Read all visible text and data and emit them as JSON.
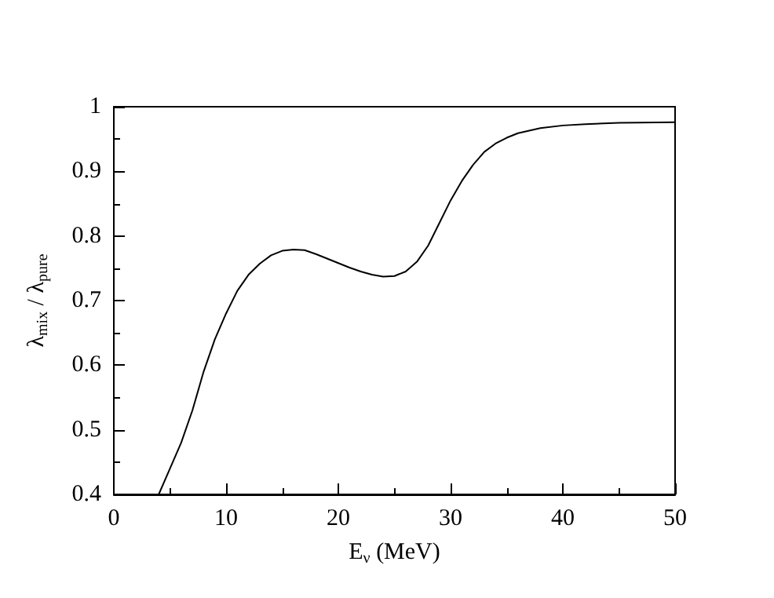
{
  "chart_data": {
    "type": "line",
    "xlabel": "E$_{ν}$ (MeV)",
    "ylabel": "λ$_{mix}$ / λ$_{pure}$",
    "series": [
      {
        "color": "#000000",
        "x": [
          4,
          5,
          6,
          7,
          8,
          9,
          10,
          11,
          12,
          13,
          14,
          15,
          16,
          17,
          18,
          19,
          20,
          21,
          22,
          23,
          24,
          25,
          26,
          27,
          28,
          29,
          30,
          31,
          32,
          33,
          34,
          35,
          36,
          38,
          40,
          42,
          45,
          50
        ],
        "values": [
          0.4,
          0.44,
          0.48,
          0.53,
          0.59,
          0.64,
          0.68,
          0.715,
          0.74,
          0.757,
          0.77,
          0.777,
          0.779,
          0.778,
          0.772,
          0.765,
          0.758,
          0.751,
          0.745,
          0.74,
          0.737,
          0.738,
          0.745,
          0.76,
          0.785,
          0.82,
          0.855,
          0.885,
          0.91,
          0.93,
          0.943,
          0.952,
          0.959,
          0.967,
          0.971,
          0.973,
          0.975,
          0.976
        ]
      }
    ],
    "xlim": [
      0,
      50
    ],
    "xticks": [
      0,
      10,
      20,
      30,
      40,
      50
    ],
    "ylim": [
      0.4,
      1
    ],
    "yticks": [
      0.4,
      0.5,
      0.6,
      0.7,
      0.8,
      0.9,
      1
    ],
    "grid": false,
    "marker": "none",
    "line_style": "solid"
  }
}
